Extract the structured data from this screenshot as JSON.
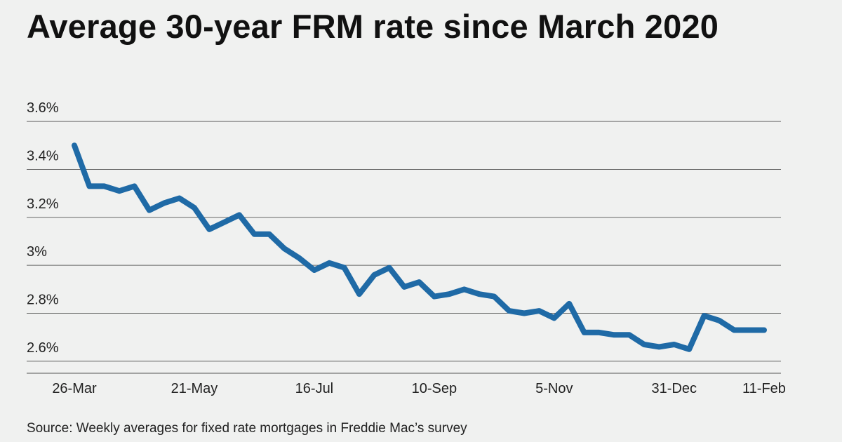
{
  "chart_data": {
    "type": "line",
    "title": "Average 30-year FRM rate since March 2020",
    "source": "Source: Weekly averages for fixed rate mortgages in Freddie Mac’s survey",
    "xlabel": "",
    "ylabel": "",
    "ylim": [
      2.55,
      3.65
    ],
    "y_ticks": [
      {
        "value": 2.6,
        "label": "2.6%"
      },
      {
        "value": 2.8,
        "label": "2.8%"
      },
      {
        "value": 3.0,
        "label": "3%"
      },
      {
        "value": 3.2,
        "label": "3.2%"
      },
      {
        "value": 3.4,
        "label": "3.4%"
      },
      {
        "value": 3.6,
        "label": "3.6%"
      }
    ],
    "x_tick_labels": [
      "26-Mar",
      "21-May",
      "16-Jul",
      "10-Sep",
      "5-Nov",
      "31-Dec",
      "11-Feb"
    ],
    "x_tick_indices": [
      0,
      8,
      16,
      24,
      32,
      40,
      46
    ],
    "color": "#1f6aa6",
    "grid": true,
    "series": [
      {
        "name": "30-year FRM",
        "values": [
          3.5,
          3.33,
          3.33,
          3.31,
          3.33,
          3.23,
          3.26,
          3.28,
          3.24,
          3.15,
          3.18,
          3.21,
          3.13,
          3.13,
          3.07,
          3.03,
          2.98,
          3.01,
          2.99,
          2.88,
          2.96,
          2.99,
          2.91,
          2.93,
          2.87,
          2.88,
          2.9,
          2.88,
          2.87,
          2.81,
          2.8,
          2.81,
          2.78,
          2.84,
          2.72,
          2.72,
          2.71,
          2.71,
          2.67,
          2.66,
          2.67,
          2.65,
          2.79,
          2.77,
          2.73,
          2.73,
          2.73
        ]
      }
    ]
  }
}
